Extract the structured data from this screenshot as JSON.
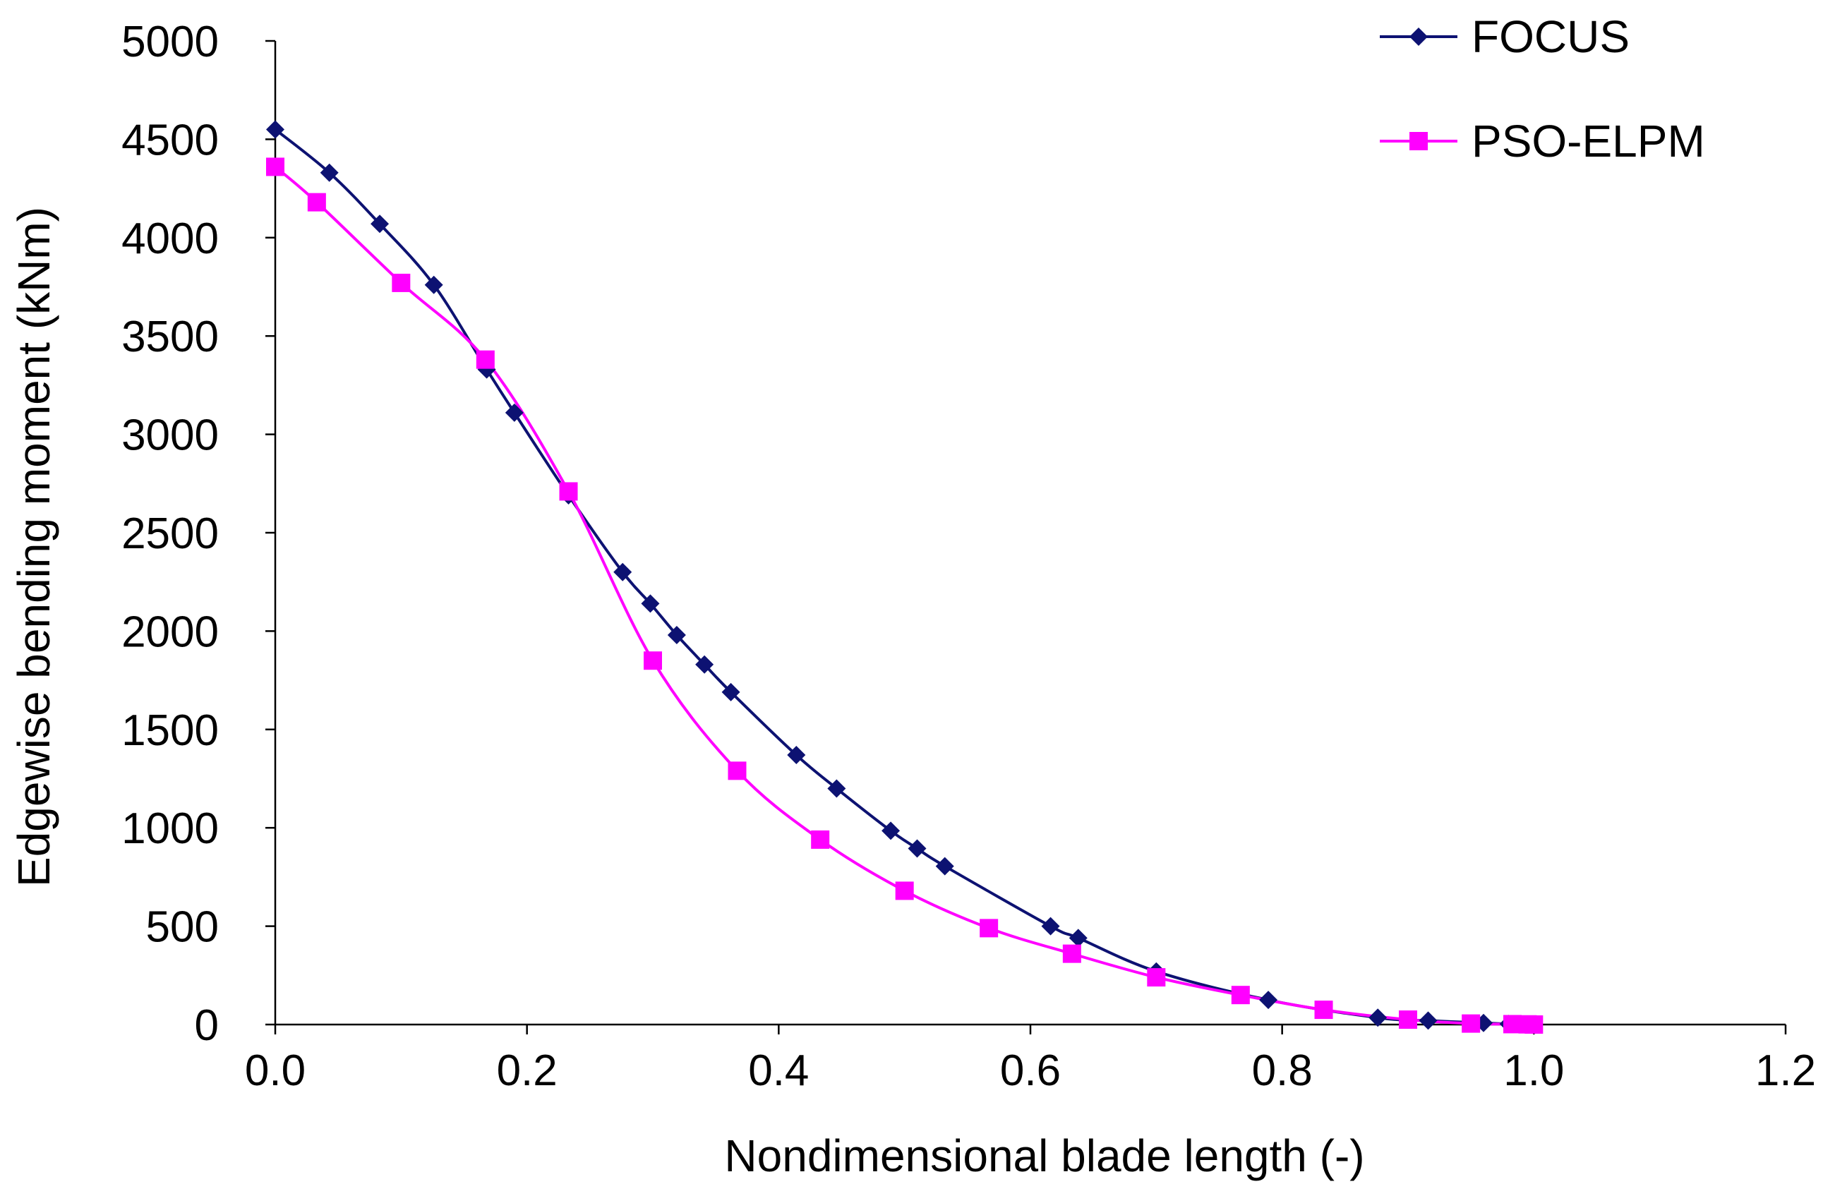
{
  "chart_data": {
    "type": "line",
    "title": "",
    "xlabel": "Nondimensional blade length (-)",
    "ylabel": "Edgewise bending moment (kNm)",
    "xlim": [
      0,
      1.2
    ],
    "ylim": [
      0,
      5000
    ],
    "xticks": [
      0.0,
      0.2,
      0.4,
      0.6,
      0.8,
      1.0,
      1.2
    ],
    "xtick_labels": [
      "0.0",
      "0.2",
      "0.4",
      "0.6",
      "0.8",
      "1.0",
      "1.2"
    ],
    "yticks": [
      0,
      500,
      1000,
      1500,
      2000,
      2500,
      3000,
      3500,
      4000,
      4500,
      5000
    ],
    "ytick_labels": [
      "0",
      "500",
      "1000",
      "1500",
      "2000",
      "2500",
      "3000",
      "3500",
      "4000",
      "4500",
      "5000"
    ],
    "grid": false,
    "legend_position": "top-right",
    "series": [
      {
        "name": "FOCUS",
        "color": "#0d1272",
        "marker": "diamond",
        "x": [
          0.0,
          0.043,
          0.083,
          0.126,
          0.168,
          0.19,
          0.233,
          0.276,
          0.298,
          0.319,
          0.341,
          0.362,
          0.414,
          0.446,
          0.489,
          0.51,
          0.532,
          0.616,
          0.638,
          0.7,
          0.789,
          0.876,
          0.916,
          0.96,
          0.98,
          1.0
        ],
        "y": [
          4550,
          4330,
          4070,
          3760,
          3330,
          3110,
          2690,
          2300,
          2140,
          1980,
          1830,
          1690,
          1370,
          1200,
          985,
          895,
          805,
          500,
          440,
          270,
          125,
          35,
          20,
          8,
          3,
          0
        ]
      },
      {
        "name": "PSO-ELPM",
        "color": "#ff00ff",
        "marker": "square",
        "x": [
          0.0,
          0.033,
          0.1,
          0.167,
          0.233,
          0.3,
          0.367,
          0.433,
          0.5,
          0.567,
          0.633,
          0.7,
          0.767,
          0.833,
          0.9,
          0.95,
          0.983,
          0.995,
          1.0
        ],
        "y": [
          4360,
          4180,
          3770,
          3380,
          2710,
          1850,
          1290,
          940,
          680,
          490,
          360,
          240,
          150,
          75,
          25,
          5,
          2,
          1,
          0
        ]
      }
    ]
  }
}
